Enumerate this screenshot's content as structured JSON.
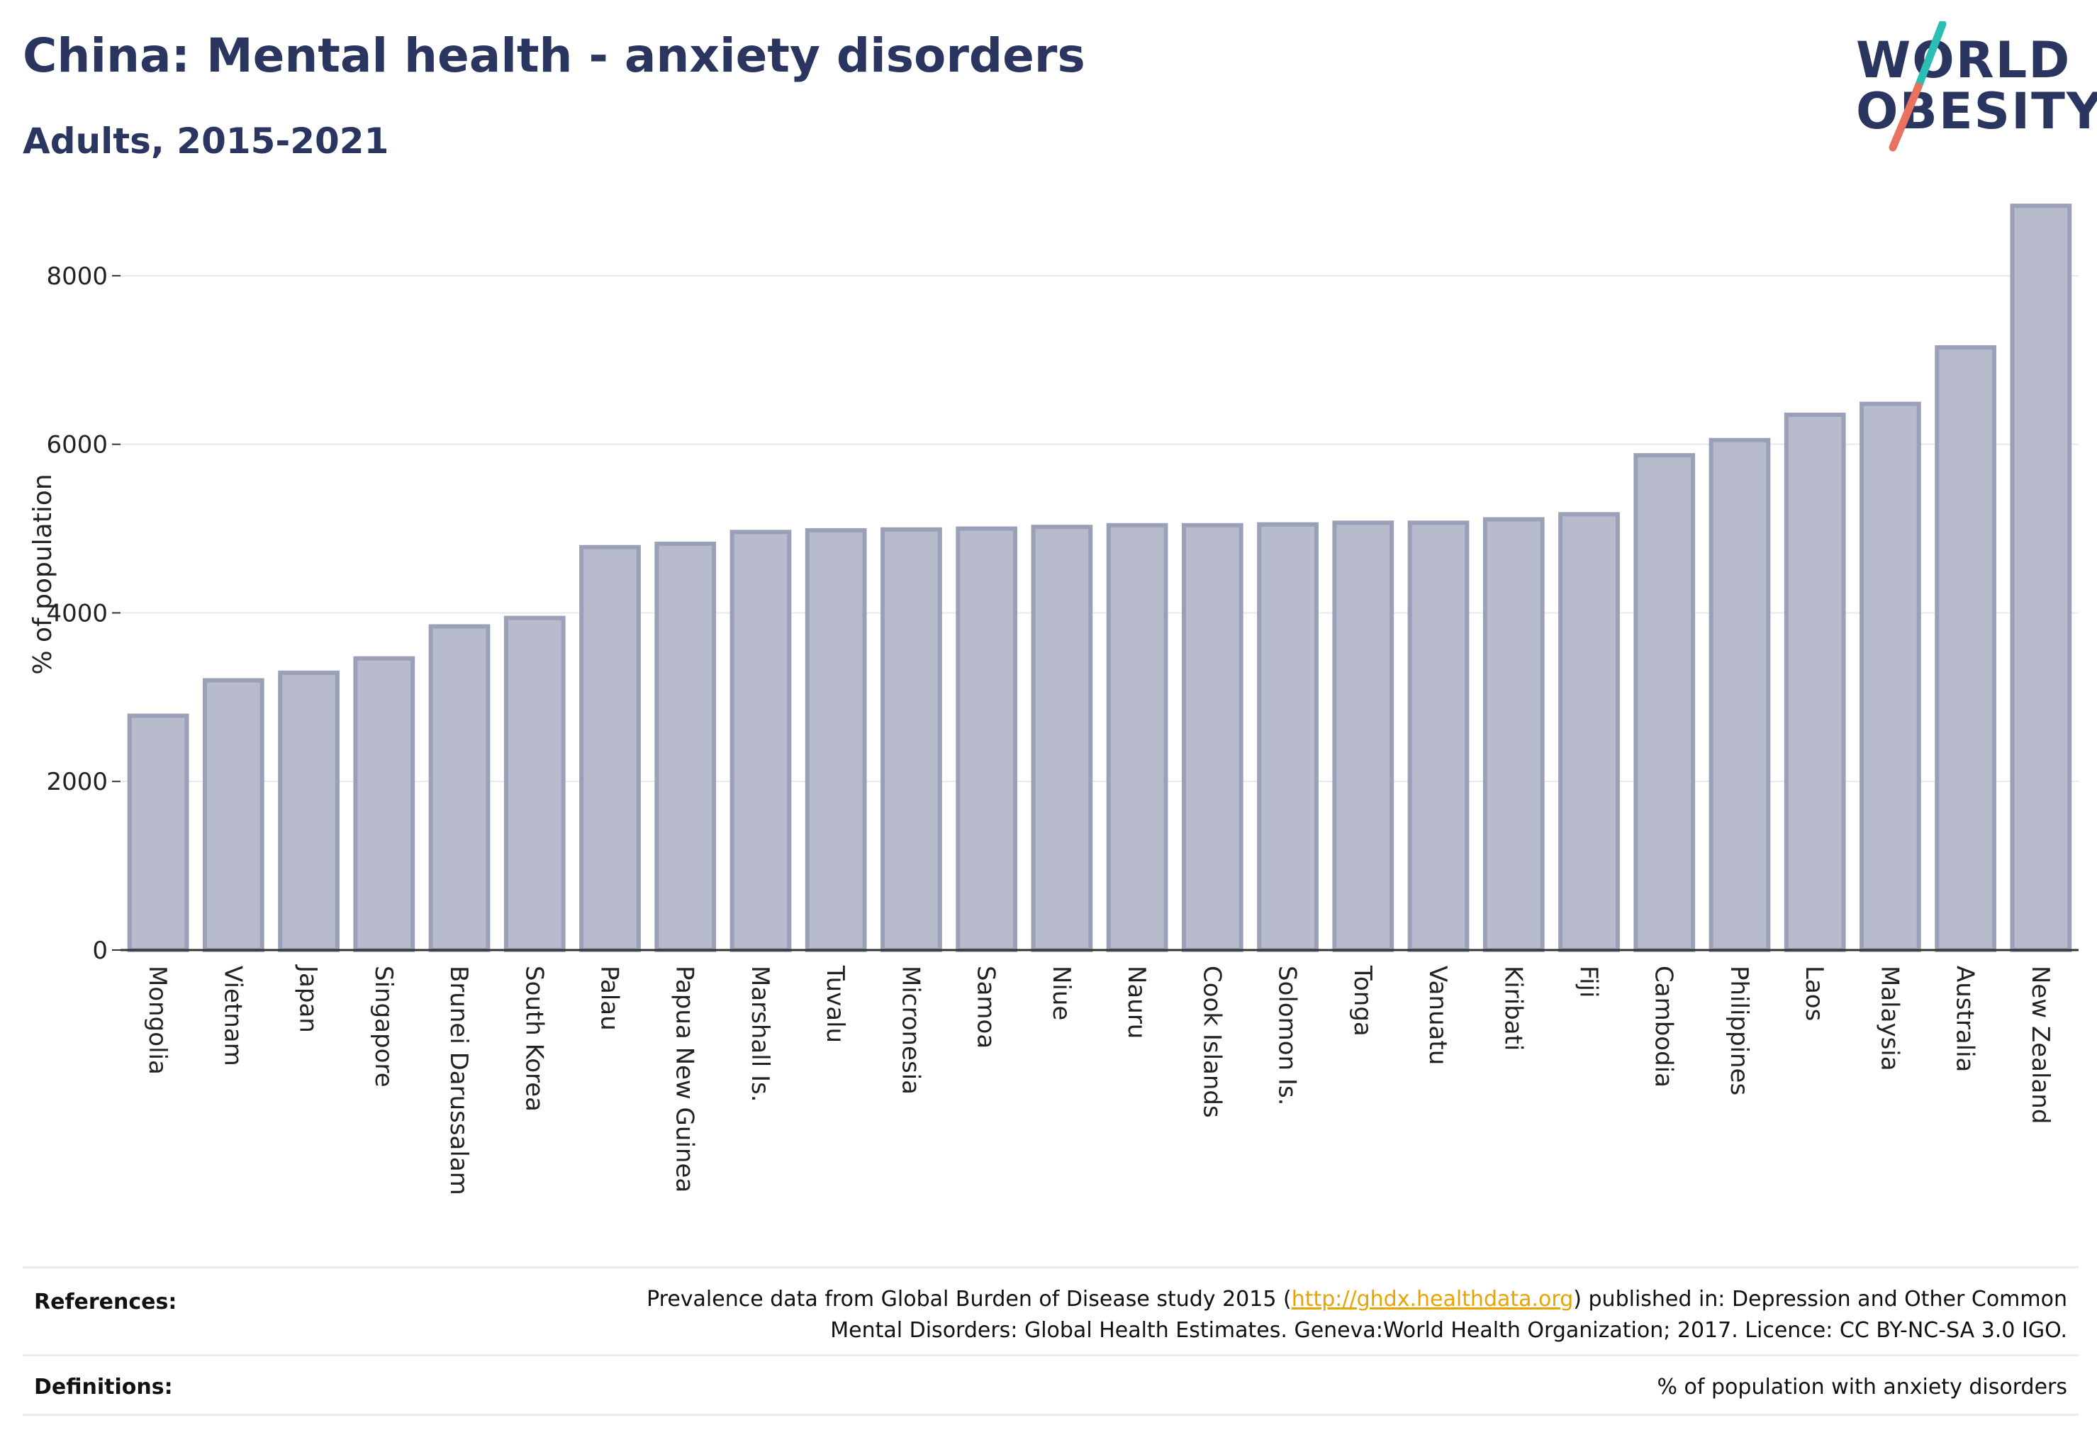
{
  "header": {
    "title": "China: Mental health - anxiety disorders",
    "subtitle": "Adults, 2015-2021"
  },
  "logo": {
    "line1": "WORLD",
    "line2": "OBESITY",
    "color_text": "#2b3660",
    "color_slash_top": "#2bbfb3",
    "color_slash_bottom": "#e8715f"
  },
  "chart_data": {
    "type": "bar",
    "title": "",
    "ylabel": "% of population",
    "xlabel": "",
    "ylim": [
      0,
      9000
    ],
    "yticks": [
      0,
      2000,
      4000,
      6000,
      8000
    ],
    "grid": true,
    "bar_color": "#b7bbcb",
    "bar_edge_color": "#9aa0b7",
    "categories": [
      "Mongolia",
      "Vietnam",
      "Japan",
      "Singapore",
      "Brunei Darussalam",
      "South Korea",
      "Palau",
      "Papua New Guinea",
      "Marshall Is.",
      "Tuvalu",
      "Micronesia",
      "Samoa",
      "Niue",
      "Nauru",
      "Cook Islands",
      "Solomon Is.",
      "Tonga",
      "Vanuatu",
      "Kiribati",
      "Fiji",
      "Cambodia",
      "Philippines",
      "Laos",
      "Malaysia",
      "Australia",
      "New Zealand"
    ],
    "values": [
      2780,
      3200,
      3290,
      3460,
      3840,
      3940,
      4780,
      4820,
      4960,
      4980,
      4990,
      5000,
      5020,
      5040,
      5040,
      5050,
      5070,
      5070,
      5110,
      5170,
      5870,
      6050,
      6350,
      6480,
      7150,
      8830
    ]
  },
  "references": {
    "label": "References:",
    "text_before_link": "Prevalence data from Global Burden of Disease study 2015 (",
    "link": "http://ghdx.healthdata.org",
    "text_after_link": ") published in: Depression and Other Common",
    "line2": "Mental Disorders: Global Health Estimates. Geneva:World Health Organization; 2017. Licence: CC BY-NC-SA 3.0 IGO."
  },
  "definitions": {
    "label": "Definitions:",
    "text": "% of population with anxiety disorders"
  }
}
